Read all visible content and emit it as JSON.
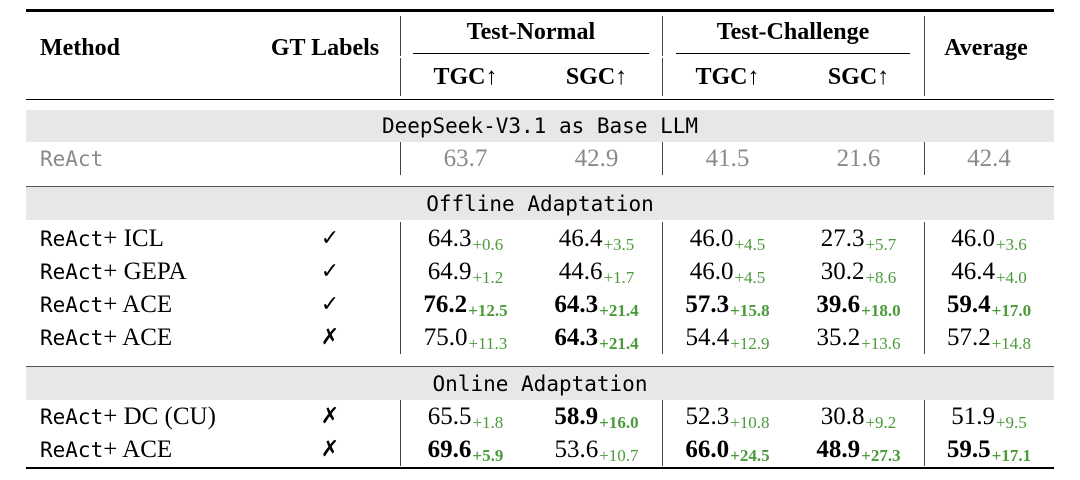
{
  "header": {
    "method": "Method",
    "gt_labels": "GT Labels",
    "test_normal": "Test-Normal",
    "test_challenge": "Test-Challenge",
    "average": "Average",
    "tgc": "TGC↑",
    "sgc": "SGC↑"
  },
  "sections": [
    {
      "title": "DeepSeek-V3.1 as Base LLM",
      "baseline": {
        "method": "ReAct",
        "values": [
          "63.7",
          "42.9",
          "41.5",
          "21.6",
          "42.4"
        ]
      }
    },
    {
      "title": "Offline Adaptation",
      "rows": [
        {
          "method": "ReAct",
          "suffix": " + ICL",
          "gt": "✓",
          "cells": [
            {
              "v": "64.3",
              "d": "+0.6",
              "bold": false
            },
            {
              "v": "46.4",
              "d": "+3.5",
              "bold": false
            },
            {
              "v": "46.0",
              "d": "+4.5",
              "bold": false
            },
            {
              "v": "27.3",
              "d": "+5.7",
              "bold": false
            },
            {
              "v": "46.0",
              "d": "+3.6",
              "bold": false
            }
          ]
        },
        {
          "method": "ReAct",
          "suffix": " + GEPA",
          "gt": "✓",
          "cells": [
            {
              "v": "64.9",
              "d": "+1.2",
              "bold": false
            },
            {
              "v": "44.6",
              "d": "+1.7",
              "bold": false
            },
            {
              "v": "46.0",
              "d": "+4.5",
              "bold": false
            },
            {
              "v": "30.2",
              "d": "+8.6",
              "bold": false
            },
            {
              "v": "46.4",
              "d": "+4.0",
              "bold": false
            }
          ]
        },
        {
          "method": "ReAct",
          "suffix": " + ACE",
          "gt": "✓",
          "cells": [
            {
              "v": "76.2",
              "d": "+12.5",
              "bold": true
            },
            {
              "v": "64.3",
              "d": "+21.4",
              "bold": true
            },
            {
              "v": "57.3",
              "d": "+15.8",
              "bold": true
            },
            {
              "v": "39.6",
              "d": "+18.0",
              "bold": true
            },
            {
              "v": "59.4",
              "d": "+17.0",
              "bold": true
            }
          ]
        },
        {
          "method": "ReAct",
          "suffix": " + ACE",
          "gt": "✗",
          "cells": [
            {
              "v": "75.0",
              "d": "+11.3",
              "bold": false
            },
            {
              "v": "64.3",
              "d": "+21.4",
              "bold": true
            },
            {
              "v": "54.4",
              "d": "+12.9",
              "bold": false
            },
            {
              "v": "35.2",
              "d": "+13.6",
              "bold": false
            },
            {
              "v": "57.2",
              "d": "+14.8",
              "bold": false
            }
          ]
        }
      ]
    },
    {
      "title": "Online Adaptation",
      "rows": [
        {
          "method": "ReAct",
          "suffix": " + DC (CU)",
          "gt": "✗",
          "cells": [
            {
              "v": "65.5",
              "d": "+1.8",
              "bold": false
            },
            {
              "v": "58.9",
              "d": "+16.0",
              "bold": true
            },
            {
              "v": "52.3",
              "d": "+10.8",
              "bold": false
            },
            {
              "v": "30.8",
              "d": "+9.2",
              "bold": false
            },
            {
              "v": "51.9",
              "d": "+9.5",
              "bold": false
            }
          ]
        },
        {
          "method": "ReAct",
          "suffix": " + ACE",
          "gt": "✗",
          "cells": [
            {
              "v": "69.6",
              "d": "+5.9",
              "bold": true
            },
            {
              "v": "53.6",
              "d": "+10.7",
              "bold": false
            },
            {
              "v": "66.0",
              "d": "+24.5",
              "bold": true
            },
            {
              "v": "48.9",
              "d": "+27.3",
              "bold": true
            },
            {
              "v": "59.5",
              "d": "+17.1",
              "bold": true
            }
          ]
        }
      ]
    }
  ],
  "colors": {
    "delta": "#4a9a3a",
    "band": "#e7e7e7",
    "baseline_gray": "#8a8a8a"
  }
}
